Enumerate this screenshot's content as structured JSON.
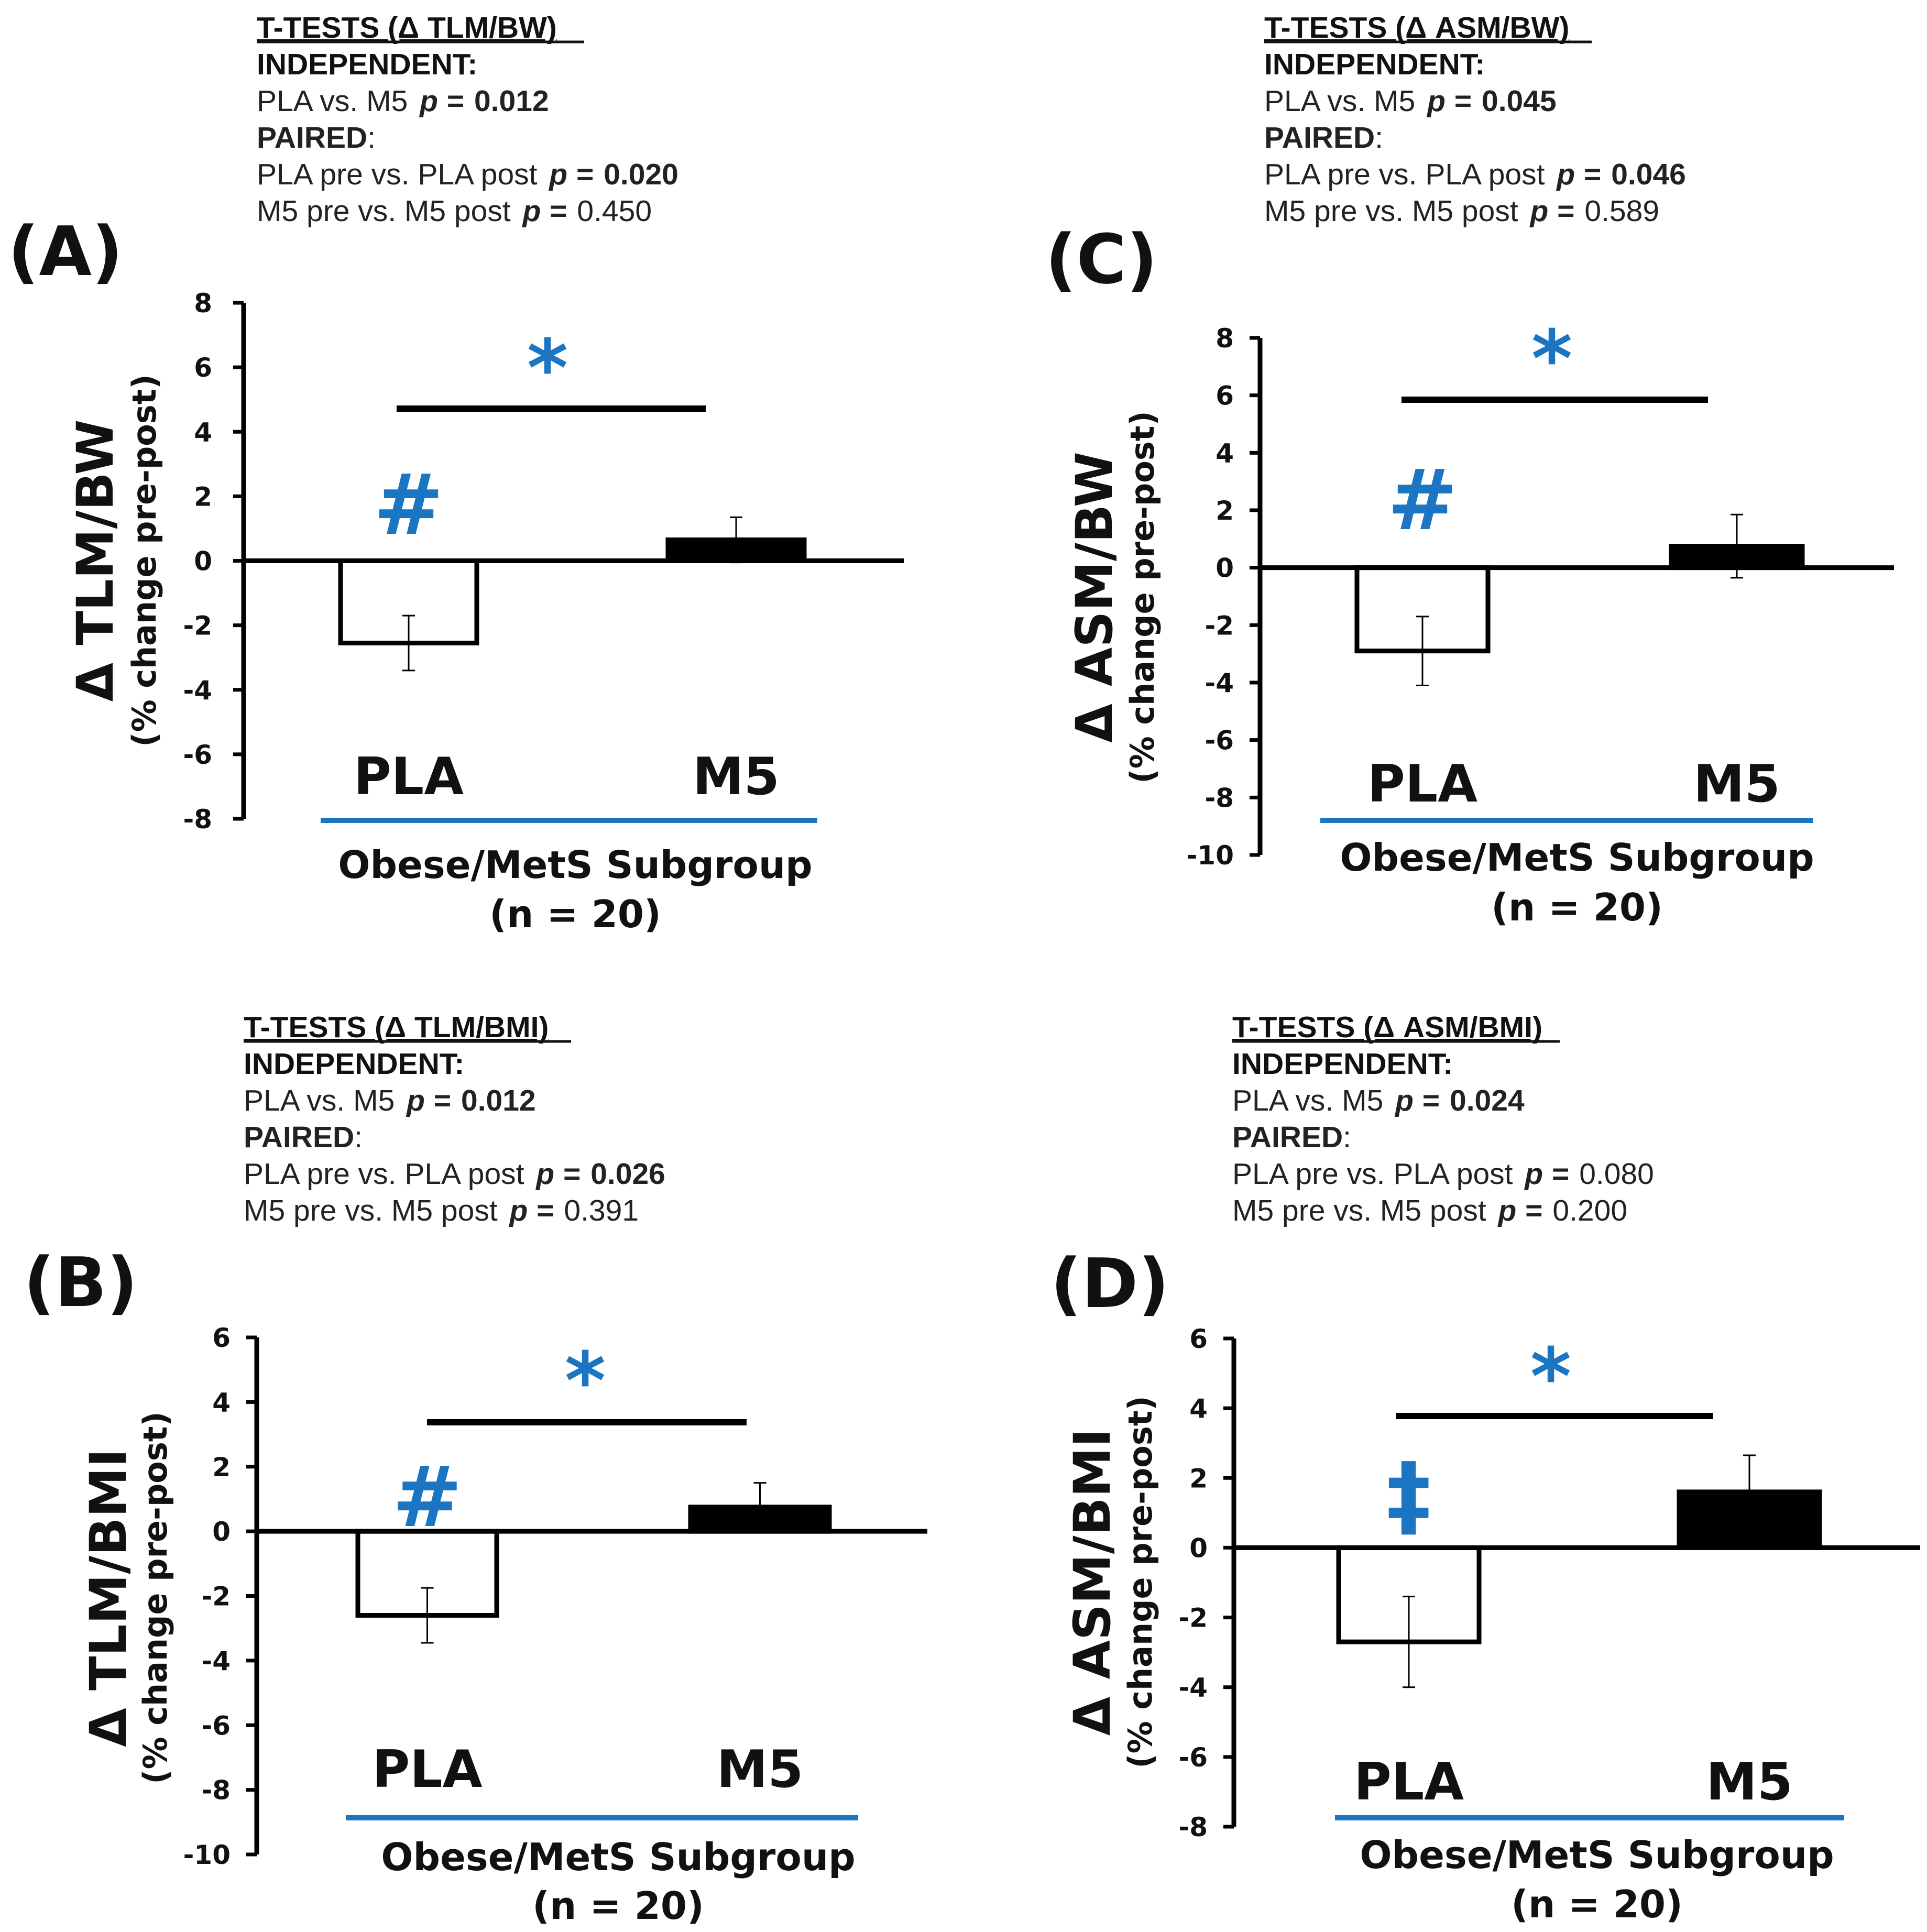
{
  "figure": {
    "accent_color": "#1a75c2",
    "bar_color_m5": "#000000",
    "bar_color_pla": "#ffffff"
  },
  "chart_data": [
    {
      "id": "A",
      "type": "bar",
      "panel_label": "(A)",
      "ylabel": "Δ TLM/BW",
      "ylabel_sub": "(% change pre-post)",
      "xlabel_line1": "Obese/MetS Subgroup",
      "xlabel_line2": "(n = 20)",
      "ylim": [
        -8,
        8
      ],
      "yticks": [
        8,
        6,
        4,
        2,
        0,
        -2,
        -4,
        -6,
        -8
      ],
      "categories": [
        "PLA",
        "M5"
      ],
      "values": [
        -2.55,
        0.65
      ],
      "errors": [
        0.85,
        0.7
      ],
      "significance": {
        "between_groups": "*",
        "within_groups": [
          "#",
          ""
        ]
      },
      "stats": {
        "title": "T-TESTS (Δ TLM/BW)",
        "independent_label": "INDEPENDENT:",
        "independent_row": {
          "comparison": "PLA vs. M5",
          "p_label": "p =",
          "p_value": "0.012",
          "bold": true
        },
        "paired_label": "PAIRED",
        "paired_rows": [
          {
            "comparison": "PLA pre vs. PLA post",
            "p_label": "p =",
            "p_value": "0.020",
            "bold": true
          },
          {
            "comparison": "M5 pre vs. M5 post",
            "p_label": "p =",
            "p_value": "0.450",
            "bold": false
          }
        ]
      }
    },
    {
      "id": "C",
      "type": "bar",
      "panel_label": "(C)",
      "ylabel": "Δ ASM/BW",
      "ylabel_sub": "(% change pre-post)",
      "xlabel_line1": "Obese/MetS Subgroup",
      "xlabel_line2": "(n = 20)",
      "ylim": [
        -10,
        8
      ],
      "yticks": [
        8,
        6,
        4,
        2,
        0,
        -2,
        -4,
        -6,
        -8,
        -10
      ],
      "categories": [
        "PLA",
        "M5"
      ],
      "values": [
        -2.9,
        0.75
      ],
      "errors": [
        1.2,
        1.1
      ],
      "significance": {
        "between_groups": "*",
        "within_groups": [
          "#",
          ""
        ]
      },
      "stats": {
        "title": "T-TESTS (Δ ASM/BW)",
        "independent_label": "INDEPENDENT:",
        "independent_row": {
          "comparison": "PLA vs. M5",
          "p_label": "p =",
          "p_value": "0.045",
          "bold": true
        },
        "paired_label": "PAIRED",
        "paired_rows": [
          {
            "comparison": "PLA pre vs. PLA post",
            "p_label": "p =",
            "p_value": "0.046",
            "bold": true
          },
          {
            "comparison": "M5 pre vs. M5 post",
            "p_label": "p =",
            "p_value": "0.589",
            "bold": false
          }
        ]
      }
    },
    {
      "id": "B",
      "type": "bar",
      "panel_label": "(B)",
      "ylabel": "Δ TLM/BMI",
      "ylabel_sub": "(% change pre-post)",
      "xlabel_line1": "Obese/MetS Subgroup",
      "xlabel_line2": "(n = 20)",
      "ylim": [
        -10,
        6
      ],
      "yticks": [
        6,
        4,
        2,
        0,
        -2,
        -4,
        -6,
        -8,
        -10
      ],
      "categories": [
        "PLA",
        "M5"
      ],
      "values": [
        -2.6,
        0.75
      ],
      "errors": [
        0.85,
        0.75
      ],
      "significance": {
        "between_groups": "*",
        "within_groups": [
          "#",
          ""
        ]
      },
      "stats": {
        "title": "T-TESTS (Δ TLM/BMI)",
        "independent_label": "INDEPENDENT:",
        "independent_row": {
          "comparison": "PLA vs. M5",
          "p_label": "p =",
          "p_value": "0.012",
          "bold": true
        },
        "paired_label": "PAIRED",
        "paired_rows": [
          {
            "comparison": "PLA pre vs. PLA post",
            "p_label": "p =",
            "p_value": "0.026",
            "bold": true
          },
          {
            "comparison": "M5 pre vs. M5 post",
            "p_label": "p =",
            "p_value": "0.391",
            "bold": false
          }
        ]
      }
    },
    {
      "id": "D",
      "type": "bar",
      "panel_label": "(D)",
      "ylabel": "Δ ASM/BMI",
      "ylabel_sub": "(% change pre-post)",
      "xlabel_line1": "Obese/MetS Subgroup",
      "xlabel_line2": "(n = 20)",
      "ylim": [
        -8,
        6
      ],
      "yticks": [
        6,
        4,
        2,
        0,
        -2,
        -4,
        -6,
        -8
      ],
      "categories": [
        "PLA",
        "M5"
      ],
      "values": [
        -2.7,
        1.6
      ],
      "errors": [
        1.3,
        1.05
      ],
      "significance": {
        "between_groups": "*",
        "within_groups": [
          "‡",
          ""
        ]
      },
      "stats": {
        "title": "T-TESTS (Δ ASM/BMI)",
        "independent_label": "INDEPENDENT:",
        "independent_row": {
          "comparison": "PLA vs. M5",
          "p_label": "p =",
          "p_value": "0.024",
          "bold": true
        },
        "paired_label": "PAIRED",
        "paired_rows": [
          {
            "comparison": "PLA pre vs. PLA post",
            "p_label": "p =",
            "p_value": "0.080",
            "bold": false
          },
          {
            "comparison": "M5 pre vs. M5 post",
            "p_label": "p =",
            "p_value": "0.200",
            "bold": false
          }
        ]
      }
    }
  ]
}
